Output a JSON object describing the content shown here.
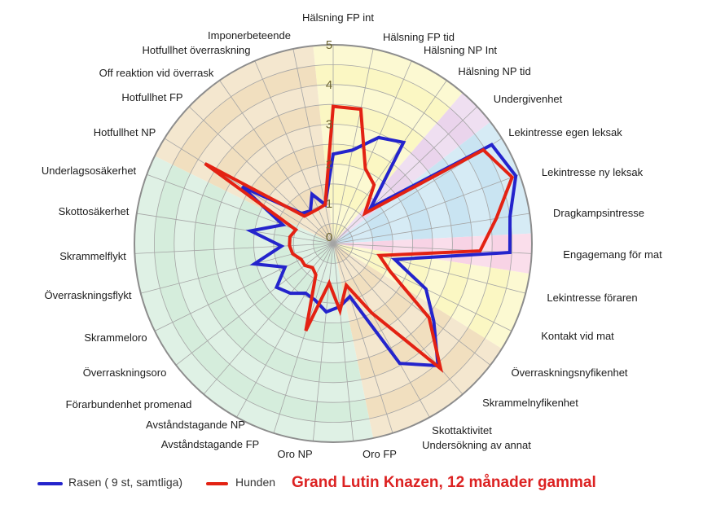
{
  "chart_data": {
    "type": "radar",
    "title": "Grand Lutin Knazen, 12 månader gammal",
    "title_color": "#dc2222",
    "axis_min": 0,
    "axis_max": 5,
    "ring_step": 0.5,
    "tick_labels": [
      "0",
      "1",
      "2",
      "3",
      "4",
      "5"
    ],
    "tick_color": "#6b6430",
    "grid_color": "#a5a5a5",
    "outer_ring_color": "#8d8d8d",
    "categories": [
      "Hälsning FP int",
      "Hälsning FP tid",
      "Hälsning NP Int",
      "Hälsning NP tid",
      "Undergivenhet",
      "Lekintresse egen leksak",
      "Lekintresse ny leksak",
      "Dragkampsintresse",
      "Engagemang för mat",
      "Lekintresse föraren",
      "Kontakt vid mat",
      "Överraskningsnyfikenhet",
      "Skrammelnyfikenhet",
      "Skottaktivitet",
      "Undersökning av annat",
      "Oro FP",
      "Oro NP",
      "Avståndstagande FP",
      "Avståndstagande NP",
      "Förarbundenhet promenad",
      "Överraskningsoro",
      "Skrammeloro",
      "Överraskningsflykt",
      "Skrammelflykt",
      "Skottosäkerhet",
      "Underlagsosäkerhet",
      "Hotfullhet NP",
      "Hotfullhet FP",
      "Off reaktion vid överrask",
      "Hotfullhet överraskning",
      "Imponerbeteende"
    ],
    "series": [
      {
        "name": "Rasen ( 9 st, samtliga)",
        "color": "#2424cc",
        "values": [
          2.25,
          2.4,
          2.9,
          3.1,
          1.3,
          4.7,
          4.9,
          4.5,
          4.45,
          1.6,
          2.6,
          3.2,
          4.05,
          3.45,
          1.4,
          1.6,
          1.73,
          1.5,
          1.43,
          1.65,
          1.8,
          1.35,
          2.05,
          1.3,
          2.1,
          1.35,
          2.7,
          1.1,
          1.0,
          1.35,
          1.0
        ]
      },
      {
        "name": "Hunden",
        "color": "#e32213",
        "values": [
          3.45,
          3.45,
          2.05,
          1.8,
          1.1,
          4.45,
          4.8,
          4.15,
          3.7,
          1.2,
          1.6,
          3.05,
          4.15,
          2.0,
          1.1,
          1.7,
          1.0,
          2.3,
          0.9,
          0.8,
          0.9,
          0.9,
          1.05,
          1.1,
          1.1,
          1.0,
          3.8,
          1.0,
          0.95,
          0.95,
          1.0
        ]
      }
    ],
    "sectors": [
      {
        "start_axis": 0,
        "end_axis": 3,
        "color": "#FBF7C3"
      },
      {
        "start_axis": 4,
        "end_axis": 4,
        "color": "#EAD4EC"
      },
      {
        "start_axis": 5,
        "end_axis": 7,
        "color": "#C9E4F2"
      },
      {
        "start_axis": 8,
        "end_axis": 8,
        "color": "#F8D3E5"
      },
      {
        "start_axis": 9,
        "end_axis": 10,
        "color": "#FBF7C3"
      },
      {
        "start_axis": 11,
        "end_axis": 14,
        "color": "#F1DFBF"
      },
      {
        "start_axis": 15,
        "end_axis": 25,
        "color": "#D5EDDC"
      },
      {
        "start_axis": 26,
        "end_axis": 30,
        "color": "#F1DFBF"
      }
    ],
    "legend_position": "bottom-left"
  }
}
